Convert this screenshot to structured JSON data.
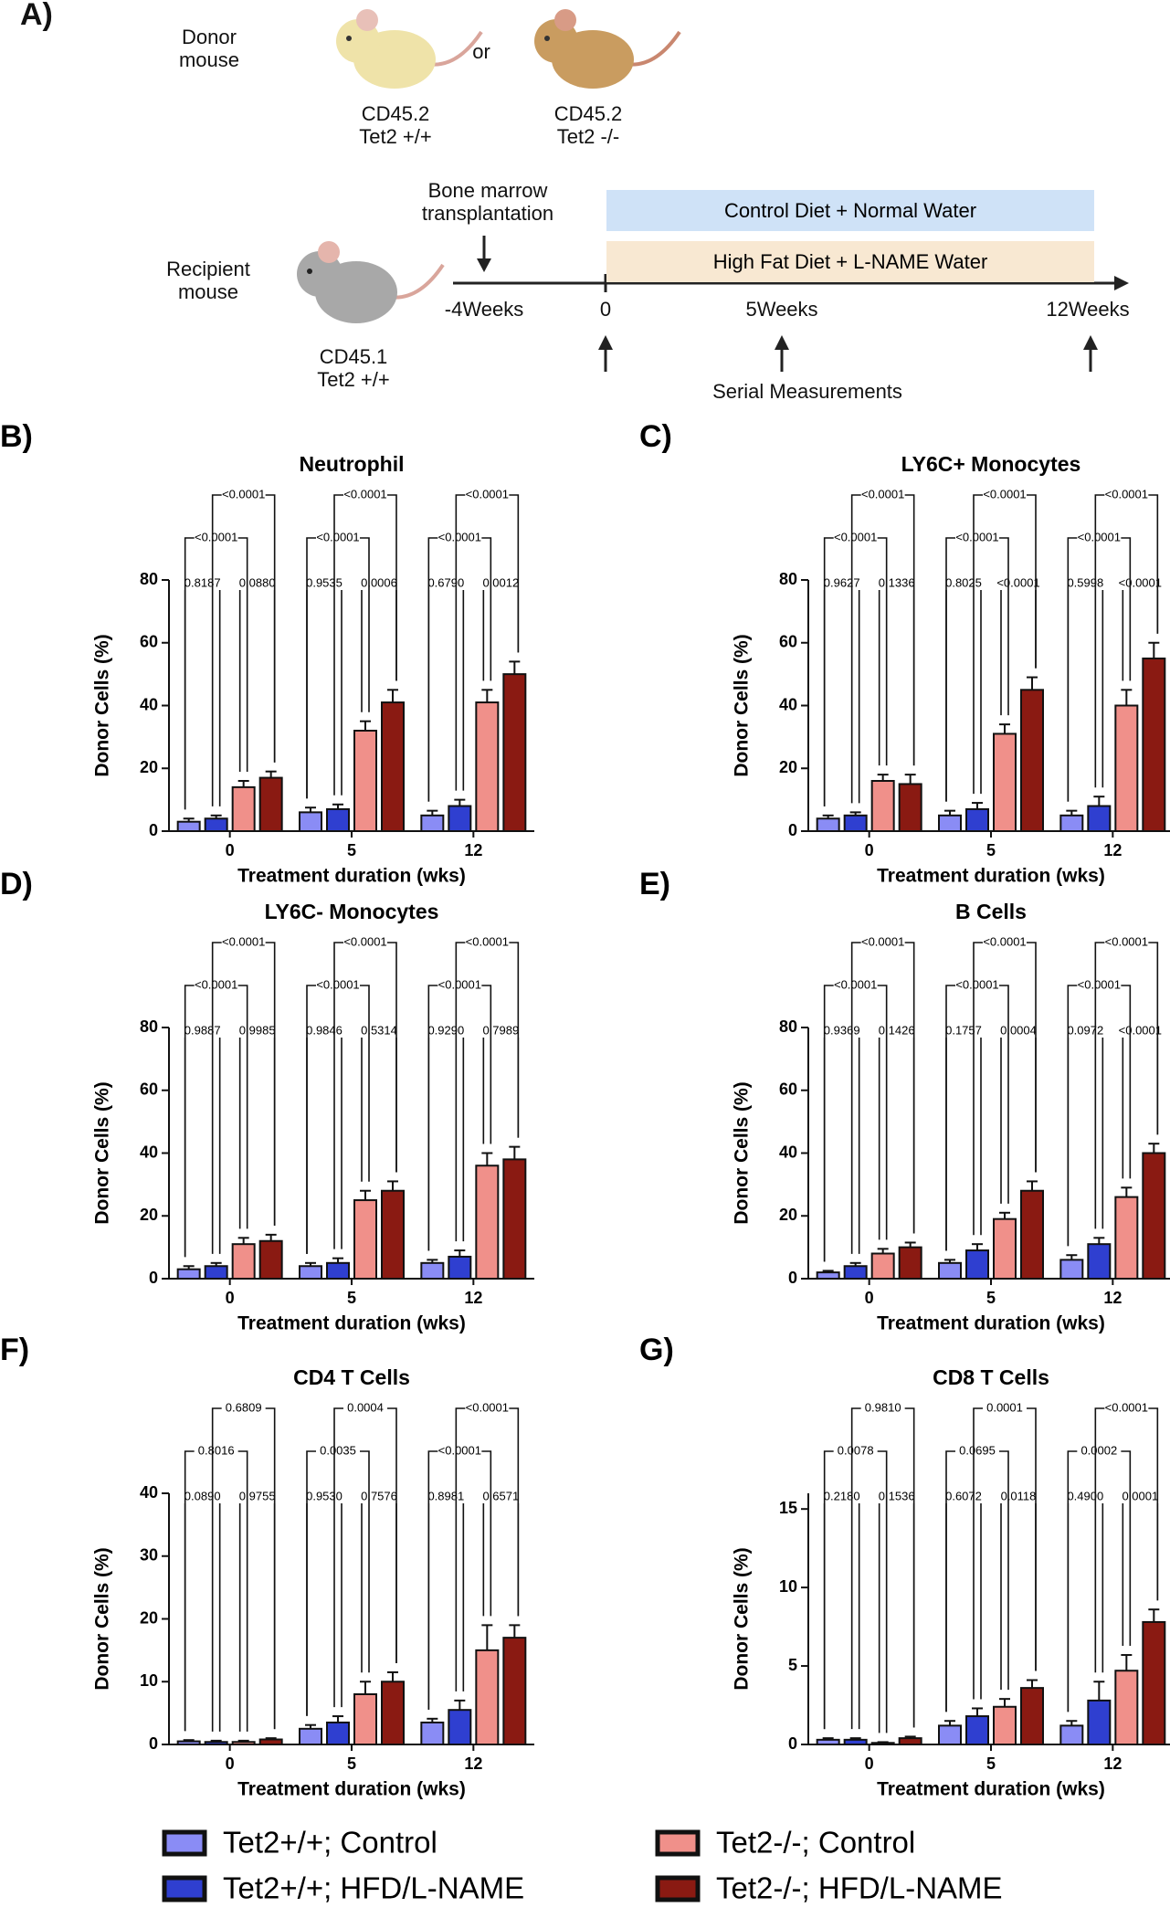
{
  "schematic": {
    "label": "A)",
    "donor_label": "Donor mouse",
    "donor_wt": "CD45.2 Tet2 +/+",
    "or": "or",
    "donor_ko": "CD45.2 Tet2 -/-",
    "transplant": "Bone marrow transplantation",
    "control_diet": "Control Diet + Normal Water",
    "hfd": "High Fat Diet + L-NAME Water",
    "recipient_label": "Recipient mouse",
    "recipient": "CD45.1 Tet2 +/+",
    "timeline": [
      "-4Weeks",
      "0",
      "5Weeks",
      "12Weeks"
    ],
    "measurements": "Serial Measurements"
  },
  "legend": [
    {
      "name": "Tet2+/+; Control",
      "color": "#8a8cf5"
    },
    {
      "name": "Tet2+/+; HFD/L-NAME",
      "color": "#2f3fd0"
    },
    {
      "name": "Tet2-/-; Control",
      "color": "#f0908a"
    },
    {
      "name": "Tet2-/-; HFD/L-NAME",
      "color": "#8a1a12"
    }
  ],
  "chart_data": [
    {
      "type": "bar",
      "panel_label": "B)",
      "title": "Neutrophil",
      "x_label": "Treatment duration (wks)",
      "y_label": "Donor Cells (%)",
      "categories": [
        "0",
        "5",
        "12"
      ],
      "ylim": [
        0,
        80
      ],
      "yticks": [
        0,
        20,
        40,
        60,
        80
      ],
      "series": [
        {
          "values": [
            3,
            6,
            5
          ],
          "errors": [
            1,
            1.5,
            1.5
          ]
        },
        {
          "values": [
            4,
            7,
            8
          ],
          "errors": [
            1,
            1.5,
            2
          ]
        },
        {
          "values": [
            14,
            32,
            41
          ],
          "errors": [
            2,
            3,
            4
          ]
        },
        {
          "values": [
            17,
            41,
            50
          ],
          "errors": [
            2,
            4,
            4
          ]
        }
      ],
      "p_values": [
        [
          "0.8187",
          "0.0880",
          "<0.0001",
          "<0.0001"
        ],
        [
          "0.9535",
          "0.0006",
          "<0.0001",
          "<0.0001"
        ],
        [
          "0.6790",
          "0.0012",
          "<0.0001",
          "<0.0001"
        ]
      ]
    },
    {
      "type": "bar",
      "panel_label": "C)",
      "title": "LY6C+ Monocytes",
      "x_label": "Treatment duration (wks)",
      "y_label": "Donor Cells (%)",
      "categories": [
        "0",
        "5",
        "12"
      ],
      "ylim": [
        0,
        80
      ],
      "yticks": [
        0,
        20,
        40,
        60,
        80
      ],
      "series": [
        {
          "values": [
            4,
            5,
            5
          ],
          "errors": [
            1,
            1.5,
            1.5
          ]
        },
        {
          "values": [
            5,
            7,
            8
          ],
          "errors": [
            1,
            2,
            3
          ]
        },
        {
          "values": [
            16,
            31,
            40
          ],
          "errors": [
            2,
            3,
            5
          ]
        },
        {
          "values": [
            15,
            45,
            55
          ],
          "errors": [
            3,
            4,
            5
          ]
        }
      ],
      "p_values": [
        [
          "0.9627",
          "0.1336",
          "<0.0001",
          "<0.0001"
        ],
        [
          "0.8025",
          "<0.0001",
          "<0.0001",
          "<0.0001"
        ],
        [
          "0.5998",
          "<0.0001",
          "<0.0001",
          "<0.0001"
        ]
      ]
    },
    {
      "type": "bar",
      "panel_label": "D)",
      "title": "LY6C- Monocytes",
      "x_label": "Treatment duration (wks)",
      "y_label": "Donor Cells (%)",
      "categories": [
        "0",
        "5",
        "12"
      ],
      "ylim": [
        0,
        80
      ],
      "yticks": [
        0,
        20,
        40,
        60,
        80
      ],
      "series": [
        {
          "values": [
            3,
            4,
            5
          ],
          "errors": [
            1,
            1,
            1
          ]
        },
        {
          "values": [
            4,
            5,
            7
          ],
          "errors": [
            1,
            1.5,
            2
          ]
        },
        {
          "values": [
            11,
            25,
            36
          ],
          "errors": [
            2,
            3,
            4
          ]
        },
        {
          "values": [
            12,
            28,
            38
          ],
          "errors": [
            2,
            3,
            4
          ]
        }
      ],
      "p_values": [
        [
          "0.9887",
          "0.9985",
          "<0.0001",
          "<0.0001"
        ],
        [
          "0.9846",
          "0.5314",
          "<0.0001",
          "<0.0001"
        ],
        [
          "0.9290",
          "0.7989",
          "<0.0001",
          "<0.0001"
        ]
      ]
    },
    {
      "type": "bar",
      "panel_label": "E)",
      "title": "B Cells",
      "x_label": "Treatment duration (wks)",
      "y_label": "Donor Cells (%)",
      "categories": [
        "0",
        "5",
        "12"
      ],
      "ylim": [
        0,
        80
      ],
      "yticks": [
        0,
        20,
        40,
        60,
        80
      ],
      "series": [
        {
          "values": [
            2,
            5,
            6
          ],
          "errors": [
            0.5,
            1,
            1.5
          ]
        },
        {
          "values": [
            4,
            9,
            11
          ],
          "errors": [
            1,
            2,
            2
          ]
        },
        {
          "values": [
            8,
            19,
            26
          ],
          "errors": [
            1.5,
            2,
            3
          ]
        },
        {
          "values": [
            10,
            28,
            40
          ],
          "errors": [
            1.5,
            3,
            3
          ]
        }
      ],
      "p_values": [
        [
          "0.9369",
          "0.1426",
          "<0.0001",
          "<0.0001"
        ],
        [
          "0.1757",
          "0.0004",
          "<0.0001",
          "<0.0001"
        ],
        [
          "0.0972",
          "<0.0001",
          "<0.0001",
          "<0.0001"
        ]
      ]
    },
    {
      "type": "bar",
      "panel_label": "F)",
      "title": "CD4 T Cells",
      "x_label": "Treatment duration (wks)",
      "y_label": "Donor Cells (%)",
      "categories": [
        "0",
        "5",
        "12"
      ],
      "ylim": [
        0,
        40
      ],
      "yticks": [
        0,
        10,
        20,
        30,
        40
      ],
      "series": [
        {
          "values": [
            0.5,
            2.5,
            3.5
          ],
          "errors": [
            0.2,
            0.6,
            0.6
          ]
        },
        {
          "values": [
            0.4,
            3.5,
            5.5
          ],
          "errors": [
            0.2,
            1,
            1.5
          ]
        },
        {
          "values": [
            0.4,
            8,
            15
          ],
          "errors": [
            0.2,
            2,
            4
          ]
        },
        {
          "values": [
            0.8,
            10,
            17
          ],
          "errors": [
            0.2,
            1.5,
            2
          ]
        }
      ],
      "p_values": [
        [
          "0.0890",
          "0.9755",
          "0.8016",
          "0.6809"
        ],
        [
          "0.9530",
          "0.7576",
          "0.0035",
          "0.0004"
        ],
        [
          "0.8981",
          "0.6571",
          "<0.0001",
          "<0.0001"
        ]
      ]
    },
    {
      "type": "bar",
      "panel_label": "G)",
      "title": "CD8 T Cells",
      "x_label": "Treatment duration (wks)",
      "y_label": "Donor Cells (%)",
      "categories": [
        "0",
        "5",
        "12"
      ],
      "ylim": [
        0,
        16
      ],
      "yticks": [
        0,
        5,
        10,
        15
      ],
      "series": [
        {
          "values": [
            0.3,
            1.2,
            1.2
          ],
          "errors": [
            0.1,
            0.3,
            0.3
          ]
        },
        {
          "values": [
            0.3,
            1.8,
            2.8
          ],
          "errors": [
            0.1,
            0.5,
            1.2
          ]
        },
        {
          "values": [
            0.1,
            2.4,
            4.7
          ],
          "errors": [
            0.05,
            0.5,
            1
          ]
        },
        {
          "values": [
            0.4,
            3.6,
            7.8
          ],
          "errors": [
            0.1,
            0.5,
            0.8
          ]
        }
      ],
      "p_values": [
        [
          "0.2180",
          "0.1536",
          "0.0078",
          "0.9810"
        ],
        [
          "0.6072",
          "0.0118",
          "0.0695",
          "0.0001"
        ],
        [
          "0.4900",
          "0.0001",
          "0.0002",
          "<0.0001"
        ]
      ]
    }
  ]
}
